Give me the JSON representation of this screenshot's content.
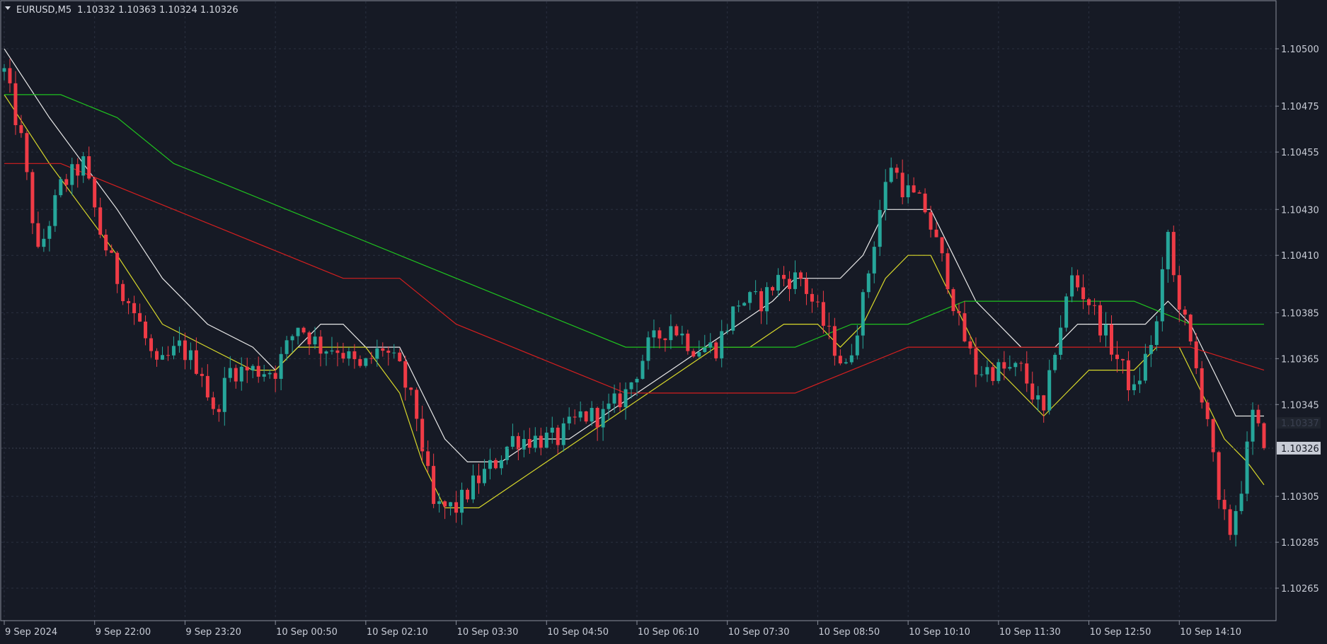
{
  "header": {
    "symbol": "EURUSD,M5",
    "quote": "1.10332 1.10363 1.10324 1.10326"
  },
  "colors": {
    "background": "#161a25",
    "grid": "#2a3040",
    "frame": "#8a8f9c",
    "bull": "#26a69a",
    "bear": "#ef3b46",
    "ma_white": "#e8e8e8",
    "ma_yellow": "#d8d82a",
    "ma_green": "#1fc21f",
    "ma_red": "#d41f1f",
    "current_price_bg": "#c8ccd6"
  },
  "chart_data": {
    "type": "candlestick",
    "symbol": "EURUSD",
    "timeframe": "M5",
    "ylim": [
      1.1026,
      1.1052
    ],
    "yticks": [
      "1.10500",
      "1.10475",
      "1.10455",
      "1.10430",
      "1.10410",
      "1.10385",
      "1.10365",
      "1.10345",
      "1.10305",
      "1.10285",
      "1.10265"
    ],
    "ytick_values": [
      1.105,
      1.10475,
      1.10455,
      1.1043,
      1.1041,
      1.10385,
      1.10365,
      1.10345,
      1.10305,
      1.10285,
      1.10265
    ],
    "xticks": [
      "9 Sep 2024",
      "9 Sep 22:00",
      "9 Sep 23:20",
      "10 Sep 00:50",
      "10 Sep 02:10",
      "10 Sep 03:30",
      "10 Sep 04:50",
      "10 Sep 06:10",
      "10 Sep 07:30",
      "10 Sep 08:50",
      "10 Sep 10:10",
      "10 Sep 11:30",
      "10 Sep 12:50",
      "10 Sep 14:10"
    ],
    "xtick_bar_index": [
      0,
      16,
      32,
      48,
      64,
      80,
      96,
      112,
      128,
      144,
      160,
      176,
      192,
      208
    ],
    "current_price": "1.10326",
    "ghost_price": "1.10337",
    "bar_count": 224,
    "price_path": [
      [
        0,
        1.1049
      ],
      [
        3,
        1.1046
      ],
      [
        6,
        1.1041
      ],
      [
        10,
        1.1044
      ],
      [
        14,
        1.1045
      ],
      [
        17,
        1.1042
      ],
      [
        20,
        1.104
      ],
      [
        24,
        1.1038
      ],
      [
        27,
        1.1036
      ],
      [
        31,
        1.1037
      ],
      [
        35,
        1.1036
      ],
      [
        37,
        1.1034
      ],
      [
        40,
        1.1036
      ],
      [
        44,
        1.1036
      ],
      [
        48,
        1.1036
      ],
      [
        52,
        1.1038
      ],
      [
        56,
        1.1037
      ],
      [
        59,
        1.1037
      ],
      [
        63,
        1.1036
      ],
      [
        67,
        1.1037
      ],
      [
        70,
        1.1036
      ],
      [
        73,
        1.1034
      ],
      [
        76,
        1.103
      ],
      [
        80,
        1.103
      ],
      [
        83,
        1.1031
      ],
      [
        87,
        1.1032
      ],
      [
        90,
        1.1033
      ],
      [
        94,
        1.1033
      ],
      [
        98,
        1.1033
      ],
      [
        102,
        1.1034
      ],
      [
        106,
        1.1034
      ],
      [
        110,
        1.1035
      ],
      [
        114,
        1.1037
      ],
      [
        118,
        1.1038
      ],
      [
        122,
        1.1037
      ],
      [
        126,
        1.1037
      ],
      [
        130,
        1.1039
      ],
      [
        134,
        1.1039
      ],
      [
        137,
        1.104
      ],
      [
        141,
        1.104
      ],
      [
        145,
        1.1038
      ],
      [
        149,
        1.1036
      ],
      [
        152,
        1.1039
      ],
      [
        155,
        1.1043
      ],
      [
        157,
        1.1045
      ],
      [
        159,
        1.1044
      ],
      [
        163,
        1.1043
      ],
      [
        167,
        1.104
      ],
      [
        169,
        1.1038
      ],
      [
        172,
        1.1036
      ],
      [
        176,
        1.1036
      ],
      [
        180,
        1.1036
      ],
      [
        184,
        1.1034
      ],
      [
        186,
        1.1037
      ],
      [
        189,
        1.104
      ],
      [
        192,
        1.1039
      ],
      [
        196,
        1.1037
      ],
      [
        200,
        1.1035
      ],
      [
        204,
        1.1038
      ],
      [
        206,
        1.1042
      ],
      [
        207,
        1.104
      ],
      [
        210,
        1.1037
      ],
      [
        213,
        1.1034
      ],
      [
        215,
        1.103
      ],
      [
        217,
        1.1029
      ],
      [
        219,
        1.1031
      ],
      [
        221,
        1.1034
      ],
      [
        223,
        1.10326
      ]
    ],
    "ma_lines": [
      {
        "color_key": "ma_white",
        "points": [
          [
            0,
            1.105
          ],
          [
            8,
            1.1047
          ],
          [
            14,
            1.1045
          ],
          [
            20,
            1.1043
          ],
          [
            28,
            1.104
          ],
          [
            36,
            1.1038
          ],
          [
            44,
            1.1037
          ],
          [
            48,
            1.1036
          ],
          [
            52,
            1.1037
          ],
          [
            56,
            1.1038
          ],
          [
            60,
            1.1038
          ],
          [
            64,
            1.1037
          ],
          [
            70,
            1.1037
          ],
          [
            74,
            1.1035
          ],
          [
            78,
            1.1033
          ],
          [
            82,
            1.1032
          ],
          [
            88,
            1.1032
          ],
          [
            94,
            1.1033
          ],
          [
            100,
            1.1033
          ],
          [
            106,
            1.1034
          ],
          [
            112,
            1.1035
          ],
          [
            118,
            1.1036
          ],
          [
            124,
            1.1037
          ],
          [
            130,
            1.1038
          ],
          [
            136,
            1.1039
          ],
          [
            140,
            1.104
          ],
          [
            144,
            1.104
          ],
          [
            148,
            1.104
          ],
          [
            152,
            1.1041
          ],
          [
            156,
            1.1043
          ],
          [
            160,
            1.1043
          ],
          [
            164,
            1.1043
          ],
          [
            168,
            1.1041
          ],
          [
            172,
            1.1039
          ],
          [
            176,
            1.1038
          ],
          [
            180,
            1.1037
          ],
          [
            186,
            1.1037
          ],
          [
            190,
            1.1038
          ],
          [
            194,
            1.1038
          ],
          [
            198,
            1.1038
          ],
          [
            202,
            1.1038
          ],
          [
            206,
            1.1039
          ],
          [
            210,
            1.1038
          ],
          [
            214,
            1.1036
          ],
          [
            218,
            1.1034
          ],
          [
            223,
            1.1034
          ]
        ]
      },
      {
        "color_key": "ma_yellow",
        "points": [
          [
            0,
            1.1048
          ],
          [
            8,
            1.1045
          ],
          [
            14,
            1.1043
          ],
          [
            20,
            1.1041
          ],
          [
            28,
            1.1038
          ],
          [
            36,
            1.1037
          ],
          [
            44,
            1.1036
          ],
          [
            48,
            1.1036
          ],
          [
            52,
            1.1037
          ],
          [
            56,
            1.1037
          ],
          [
            60,
            1.1037
          ],
          [
            64,
            1.1037
          ],
          [
            70,
            1.1035
          ],
          [
            74,
            1.1032
          ],
          [
            78,
            1.103
          ],
          [
            84,
            1.103
          ],
          [
            90,
            1.1031
          ],
          [
            96,
            1.1032
          ],
          [
            102,
            1.1033
          ],
          [
            108,
            1.1034
          ],
          [
            114,
            1.1035
          ],
          [
            120,
            1.1036
          ],
          [
            126,
            1.1037
          ],
          [
            132,
            1.1037
          ],
          [
            138,
            1.1038
          ],
          [
            144,
            1.1038
          ],
          [
            148,
            1.1037
          ],
          [
            152,
            1.1038
          ],
          [
            156,
            1.104
          ],
          [
            160,
            1.1041
          ],
          [
            164,
            1.1041
          ],
          [
            168,
            1.1039
          ],
          [
            172,
            1.1037
          ],
          [
            176,
            1.1036
          ],
          [
            180,
            1.1035
          ],
          [
            184,
            1.1034
          ],
          [
            188,
            1.1035
          ],
          [
            192,
            1.1036
          ],
          [
            196,
            1.1036
          ],
          [
            200,
            1.1036
          ],
          [
            204,
            1.1037
          ],
          [
            208,
            1.1037
          ],
          [
            212,
            1.1035
          ],
          [
            216,
            1.1033
          ],
          [
            220,
            1.1032
          ],
          [
            223,
            1.1031
          ]
        ]
      },
      {
        "color_key": "ma_green",
        "points": [
          [
            0,
            1.1048
          ],
          [
            10,
            1.1048
          ],
          [
            20,
            1.1047
          ],
          [
            30,
            1.1045
          ],
          [
            40,
            1.1044
          ],
          [
            50,
            1.1043
          ],
          [
            60,
            1.1042
          ],
          [
            70,
            1.1041
          ],
          [
            80,
            1.104
          ],
          [
            90,
            1.1039
          ],
          [
            100,
            1.1038
          ],
          [
            110,
            1.1037
          ],
          [
            120,
            1.1037
          ],
          [
            130,
            1.1037
          ],
          [
            140,
            1.1037
          ],
          [
            150,
            1.1038
          ],
          [
            160,
            1.1038
          ],
          [
            170,
            1.1039
          ],
          [
            180,
            1.1039
          ],
          [
            190,
            1.1039
          ],
          [
            200,
            1.1039
          ],
          [
            210,
            1.1038
          ],
          [
            223,
            1.1038
          ]
        ]
      },
      {
        "color_key": "ma_red",
        "points": [
          [
            0,
            1.1045
          ],
          [
            10,
            1.1045
          ],
          [
            20,
            1.1044
          ],
          [
            30,
            1.1043
          ],
          [
            40,
            1.1042
          ],
          [
            50,
            1.1041
          ],
          [
            60,
            1.104
          ],
          [
            70,
            1.104
          ],
          [
            80,
            1.1038
          ],
          [
            90,
            1.1037
          ],
          [
            100,
            1.1036
          ],
          [
            110,
            1.1035
          ],
          [
            120,
            1.1035
          ],
          [
            130,
            1.1035
          ],
          [
            140,
            1.1035
          ],
          [
            150,
            1.1036
          ],
          [
            160,
            1.1037
          ],
          [
            170,
            1.1037
          ],
          [
            180,
            1.1037
          ],
          [
            190,
            1.1037
          ],
          [
            200,
            1.1037
          ],
          [
            210,
            1.1037
          ],
          [
            223,
            1.1036
          ]
        ]
      }
    ]
  }
}
